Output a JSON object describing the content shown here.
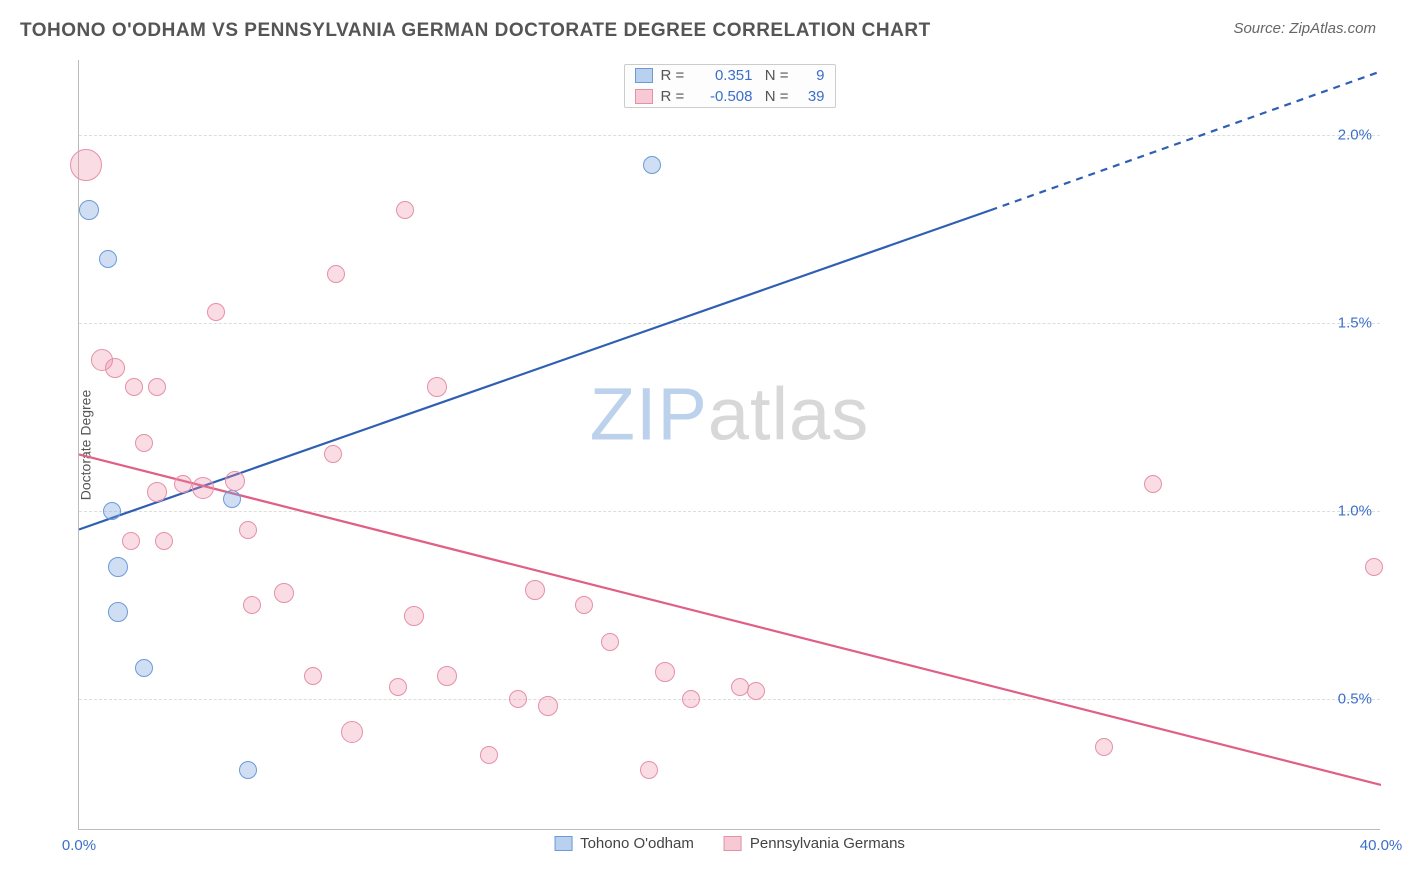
{
  "header": {
    "title": "TOHONO O'ODHAM VS PENNSYLVANIA GERMAN DOCTORATE DEGREE CORRELATION CHART",
    "source": "Source: ZipAtlas.com"
  },
  "chart": {
    "type": "scatter",
    "ylabel": "Doctorate Degree",
    "xlim": [
      0.0,
      40.0
    ],
    "ylim": [
      0.15,
      2.2
    ],
    "yticks": [
      {
        "value": 0.5,
        "label": "0.5%"
      },
      {
        "value": 1.0,
        "label": "1.0%"
      },
      {
        "value": 1.5,
        "label": "1.5%"
      },
      {
        "value": 2.0,
        "label": "2.0%"
      }
    ],
    "xticks": [
      {
        "value": 0.0,
        "label": "0.0%"
      },
      {
        "value": 40.0,
        "label": "40.0%"
      }
    ],
    "grid_color": "#dddddd",
    "background_color": "#ffffff",
    "axis_color": "#bbbbbb",
    "tick_label_color": "#3b6fc9",
    "watermark": {
      "zip": "ZIP",
      "atlas": "atlas"
    },
    "series": [
      {
        "name": "Tohono O'odham",
        "fill_color": "rgba(120,160,220,0.35)",
        "stroke_color": "#6a9bd8",
        "swatch_fill": "#b9d0ee",
        "swatch_border": "#6a9bd8",
        "points": [
          {
            "x": 0.3,
            "y": 1.8,
            "r": 10
          },
          {
            "x": 0.9,
            "y": 1.67,
            "r": 9
          },
          {
            "x": 1.0,
            "y": 1.0,
            "r": 9
          },
          {
            "x": 1.2,
            "y": 0.85,
            "r": 10
          },
          {
            "x": 1.2,
            "y": 0.73,
            "r": 10
          },
          {
            "x": 2.0,
            "y": 0.58,
            "r": 9
          },
          {
            "x": 4.7,
            "y": 1.03,
            "r": 9
          },
          {
            "x": 5.2,
            "y": 0.31,
            "r": 9
          },
          {
            "x": 17.6,
            "y": 1.92,
            "r": 9
          }
        ],
        "trendline": {
          "x1_solid": 0.0,
          "y1_solid": 0.95,
          "x2_solid": 28.0,
          "y2_solid": 1.8,
          "x1_dash": 28.0,
          "y1_dash": 1.8,
          "x2_dash": 40.0,
          "y2_dash": 2.17,
          "color": "#2e5fb3",
          "width": 2.2
        },
        "legend_r": "0.351",
        "legend_n": "9"
      },
      {
        "name": "Pennsylvania Germans",
        "fill_color": "rgba(235,140,165,0.30)",
        "stroke_color": "#e690a8",
        "swatch_fill": "#f6c9d4",
        "swatch_border": "#e690a8",
        "points": [
          {
            "x": 0.2,
            "y": 1.92,
            "r": 16
          },
          {
            "x": 0.7,
            "y": 1.4,
            "r": 11
          },
          {
            "x": 1.1,
            "y": 1.38,
            "r": 10
          },
          {
            "x": 1.7,
            "y": 1.33,
            "r": 9
          },
          {
            "x": 2.0,
            "y": 1.18,
            "r": 9
          },
          {
            "x": 2.4,
            "y": 1.33,
            "r": 9
          },
          {
            "x": 2.4,
            "y": 1.05,
            "r": 10
          },
          {
            "x": 1.6,
            "y": 0.92,
            "r": 9
          },
          {
            "x": 2.6,
            "y": 0.92,
            "r": 9
          },
          {
            "x": 3.2,
            "y": 1.07,
            "r": 9
          },
          {
            "x": 3.8,
            "y": 1.06,
            "r": 11
          },
          {
            "x": 4.2,
            "y": 1.53,
            "r": 9
          },
          {
            "x": 4.8,
            "y": 1.08,
            "r": 10
          },
          {
            "x": 5.2,
            "y": 0.95,
            "r": 9
          },
          {
            "x": 5.3,
            "y": 0.75,
            "r": 9
          },
          {
            "x": 6.3,
            "y": 0.78,
            "r": 10
          },
          {
            "x": 7.2,
            "y": 0.56,
            "r": 9
          },
          {
            "x": 7.8,
            "y": 1.15,
            "r": 9
          },
          {
            "x": 7.9,
            "y": 1.63,
            "r": 9
          },
          {
            "x": 8.4,
            "y": 0.41,
            "r": 11
          },
          {
            "x": 9.8,
            "y": 0.53,
            "r": 9
          },
          {
            "x": 10.0,
            "y": 1.8,
            "r": 9
          },
          {
            "x": 10.3,
            "y": 0.72,
            "r": 10
          },
          {
            "x": 11.0,
            "y": 1.33,
            "r": 10
          },
          {
            "x": 11.3,
            "y": 0.56,
            "r": 10
          },
          {
            "x": 12.6,
            "y": 0.35,
            "r": 9
          },
          {
            "x": 13.5,
            "y": 0.5,
            "r": 9
          },
          {
            "x": 14.0,
            "y": 0.79,
            "r": 10
          },
          {
            "x": 14.4,
            "y": 0.48,
            "r": 10
          },
          {
            "x": 15.5,
            "y": 0.75,
            "r": 9
          },
          {
            "x": 16.3,
            "y": 0.65,
            "r": 9
          },
          {
            "x": 17.5,
            "y": 0.31,
            "r": 9
          },
          {
            "x": 18.0,
            "y": 0.57,
            "r": 10
          },
          {
            "x": 18.8,
            "y": 0.5,
            "r": 9
          },
          {
            "x": 20.3,
            "y": 0.53,
            "r": 9
          },
          {
            "x": 20.8,
            "y": 0.52,
            "r": 9
          },
          {
            "x": 31.5,
            "y": 0.37,
            "r": 9
          },
          {
            "x": 33.0,
            "y": 1.07,
            "r": 9
          },
          {
            "x": 39.8,
            "y": 0.85,
            "r": 9
          }
        ],
        "trendline": {
          "x1_solid": 0.0,
          "y1_solid": 1.15,
          "x2_solid": 40.0,
          "y2_solid": 0.27,
          "color": "#e05f85",
          "width": 2.2
        },
        "legend_r": "-0.508",
        "legend_n": "39"
      }
    ],
    "legend_labels": {
      "r_label": "R =",
      "n_label": "N ="
    }
  }
}
